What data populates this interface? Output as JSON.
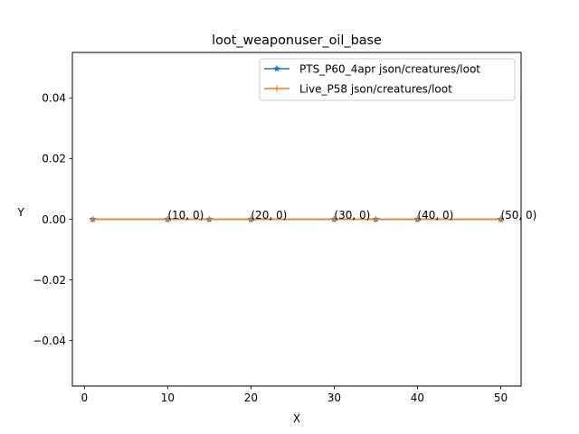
{
  "chart_data": {
    "type": "line",
    "title": "loot_weaponuser_oil_base",
    "xlabel": "X",
    "ylabel": "Y",
    "xlim": [
      -1.45,
      52.45
    ],
    "ylim": [
      -0.055,
      0.055
    ],
    "x_ticks": [
      0,
      10,
      20,
      30,
      40,
      50
    ],
    "y_ticks": [
      -0.04,
      -0.02,
      0.0,
      0.02,
      0.04
    ],
    "x_tick_labels": [
      "0",
      "10",
      "20",
      "30",
      "40",
      "50"
    ],
    "y_tick_labels": [
      "−0.04",
      "−0.02",
      "0.00",
      "0.02",
      "0.04"
    ],
    "grid": false,
    "legend_position": "top-right",
    "series": [
      {
        "name": "PTS_P60_4apr json/creatures/loot",
        "color": "#1f77b4",
        "marker": "star",
        "x": [
          1,
          10,
          15,
          20,
          30,
          35,
          40,
          50
        ],
        "y": [
          0,
          0,
          0,
          0,
          0,
          0,
          0,
          0
        ]
      },
      {
        "name": "Live_P58 json/creatures/loot",
        "color": "#ff7f0e",
        "marker": "plus",
        "x": [
          1,
          10,
          15,
          20,
          30,
          35,
          40,
          50
        ],
        "y": [
          0,
          0,
          0,
          0,
          0,
          0,
          0,
          0
        ]
      }
    ],
    "annotations": [
      {
        "x": 10,
        "y": 0,
        "text": "(10, 0)"
      },
      {
        "x": 20,
        "y": 0,
        "text": "(20, 0)"
      },
      {
        "x": 30,
        "y": 0,
        "text": "(30, 0)"
      },
      {
        "x": 40,
        "y": 0,
        "text": "(40, 0)"
      },
      {
        "x": 50,
        "y": 0,
        "text": "(50, 0)"
      }
    ]
  }
}
